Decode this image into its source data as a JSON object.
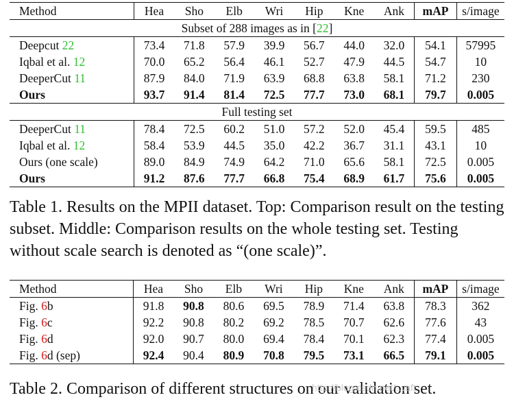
{
  "table1": {
    "header": [
      "Method",
      "Hea",
      "Sho",
      "Elb",
      "Wri",
      "Hip",
      "Kne",
      "Ank",
      "mAP",
      "s/image"
    ],
    "subset_title": {
      "text": "Subset of 288 images as in [",
      "ref": "22",
      "close": "]"
    },
    "subset_rows": [
      {
        "method": "Deepcut ",
        "ref": "22",
        "vals": [
          "73.4",
          "71.8",
          "57.9",
          "39.9",
          "56.7",
          "44.0",
          "32.0",
          "54.1",
          "57995"
        ]
      },
      {
        "method": "Iqbal et al. ",
        "ref": "12",
        "vals": [
          "70.0",
          "65.2",
          "56.4",
          "46.1",
          "52.7",
          "47.9",
          "44.5",
          "54.7",
          "10"
        ]
      },
      {
        "method": "DeeperCut ",
        "ref": "11",
        "vals": [
          "87.9",
          "84.0",
          "71.9",
          "63.9",
          "68.8",
          "63.8",
          "58.1",
          "71.2",
          "230"
        ]
      },
      {
        "method": "Ours",
        "ref": "",
        "vals": [
          "93.7",
          "91.4",
          "81.4",
          "72.5",
          "77.7",
          "73.0",
          "68.1",
          "79.7",
          "0.005"
        ]
      }
    ],
    "full_title": "Full testing set",
    "full_rows": [
      {
        "method": "DeeperCut ",
        "ref": "11",
        "vals": [
          "78.4",
          "72.5",
          "60.2",
          "51.0",
          "57.2",
          "52.0",
          "45.4",
          "59.5",
          "485"
        ]
      },
      {
        "method": "Iqbal et al. ",
        "ref": "12",
        "vals": [
          "58.4",
          "53.9",
          "44.5",
          "35.0",
          "42.2",
          "36.7",
          "31.1",
          "43.1",
          "10"
        ]
      },
      {
        "method": "Ours (one scale)",
        "ref": "",
        "vals": [
          "89.0",
          "84.9",
          "74.9",
          "64.2",
          "71.0",
          "65.6",
          "58.1",
          "72.5",
          "0.005"
        ]
      },
      {
        "method": "Ours",
        "ref": "",
        "vals": [
          "91.2",
          "87.6",
          "77.7",
          "66.8",
          "75.4",
          "68.9",
          "61.7",
          "75.6",
          "0.005"
        ]
      }
    ]
  },
  "caption1": "Table 1. Results on the MPII dataset. Top: Comparison result on the testing subset. Middle: Comparison results on the whole testing set. Testing without scale search is denoted as “(one scale)”.",
  "table2": {
    "header": [
      "Method",
      "Hea",
      "Sho",
      "Elb",
      "Wri",
      "Hip",
      "Kne",
      "Ank",
      "mAP",
      "s/image"
    ],
    "rows": [
      {
        "pre": "Fig. ",
        "ref": "6",
        "post": "b",
        "vals": [
          "91.8",
          "90.8",
          "80.6",
          "69.5",
          "78.9",
          "71.4",
          "63.8",
          "78.3",
          "362"
        ]
      },
      {
        "pre": "Fig. ",
        "ref": "6",
        "post": "c",
        "vals": [
          "92.2",
          "90.8",
          "80.2",
          "69.2",
          "78.5",
          "70.7",
          "62.6",
          "77.6",
          "43"
        ]
      },
      {
        "pre": "Fig. ",
        "ref": "6",
        "post": "d",
        "vals": [
          "92.0",
          "90.7",
          "80.0",
          "69.4",
          "78.4",
          "70.1",
          "62.3",
          "77.4",
          "0.005"
        ]
      },
      {
        "pre": "Fig. ",
        "ref": "6",
        "post": "d (sep)",
        "vals": [
          "92.4",
          "90.4",
          "80.9",
          "70.8",
          "79.5",
          "73.1",
          "66.5",
          "79.1",
          "0.005"
        ]
      }
    ]
  },
  "caption2": "Table 2. Comparison of different structures on our validation set.",
  "watermark": "http://blog.csdn.net/…aft"
}
